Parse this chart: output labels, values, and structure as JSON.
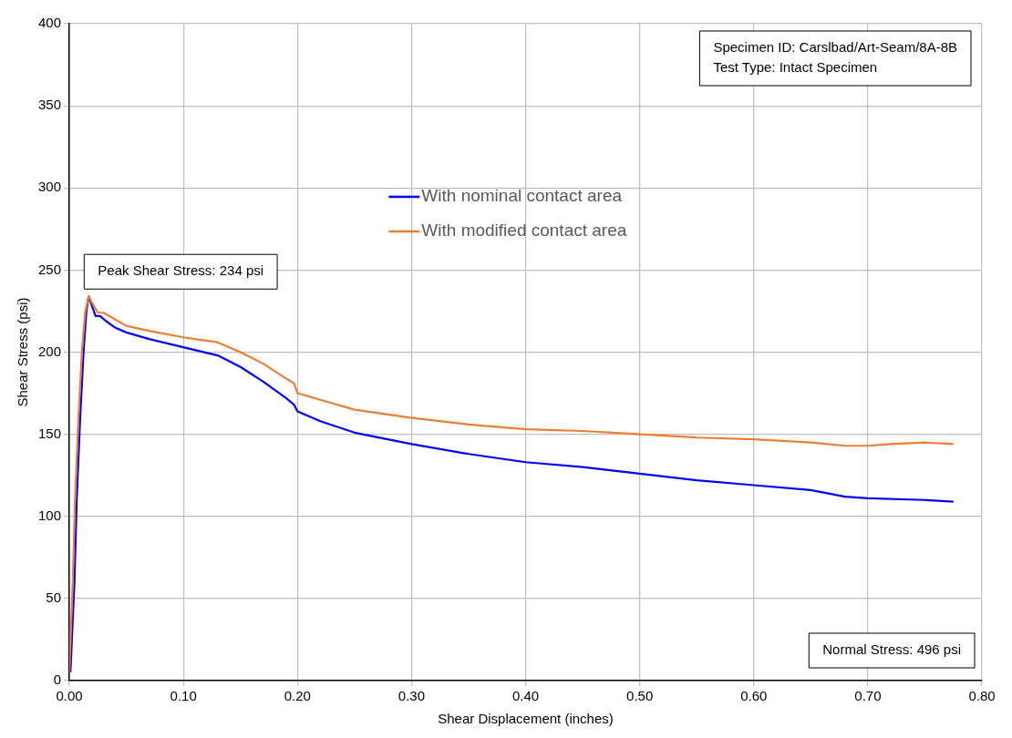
{
  "chart_data": {
    "type": "line",
    "xlabel": "Shear Displacement (inches)",
    "ylabel": "Shear Stress (psi)",
    "xlim": [
      0,
      0.8
    ],
    "xticks": [
      {
        "value": 0,
        "label": "0.00"
      },
      {
        "value": 0.1,
        "label": "0.10"
      },
      {
        "value": 0.2,
        "label": "0.20"
      },
      {
        "value": 0.3,
        "label": "0.30"
      },
      {
        "value": 0.4,
        "label": "0.40"
      },
      {
        "value": 0.5,
        "label": "0.50"
      },
      {
        "value": 0.6,
        "label": "0.60"
      },
      {
        "value": 0.7,
        "label": "0.70"
      },
      {
        "value": 0.8,
        "label": "0.80"
      }
    ],
    "ylim": [
      0,
      400
    ],
    "yticks": [
      0,
      50,
      100,
      150,
      200,
      250,
      300,
      350,
      400
    ],
    "grid": true,
    "legend": "top",
    "marker": "none",
    "line_style": "solid",
    "annotations": [
      "Specimen ID: Carslbad/Art-Seam/8A-8B\nTest Type: Intact Specimen",
      {
        "text": "Peak Shear Stress: 234 psi",
        "x": 0.017,
        "y": 234
      },
      "Normal Stress: 496 psi"
    ],
    "series": [
      {
        "name": "With nominal contact area",
        "color": "#0000ff",
        "x": [
          0.001,
          0.0045,
          0.0065,
          0.0095,
          0.0125,
          0.015,
          0.017,
          0.02,
          0.023,
          0.027,
          0.032,
          0.04,
          0.05,
          0.07,
          0.1,
          0.13,
          0.15,
          0.17,
          0.19,
          0.197,
          0.2,
          0.22,
          0.25,
          0.3,
          0.35,
          0.4,
          0.45,
          0.5,
          0.55,
          0.6,
          0.65,
          0.68,
          0.7,
          0.75,
          0.775
        ],
        "values": [
          5,
          60,
          110,
          160,
          200,
          225,
          234,
          228,
          222,
          222,
          219,
          215,
          212,
          208,
          203,
          198,
          191,
          182,
          172,
          168,
          164,
          158,
          151,
          144,
          138,
          133,
          130,
          126,
          122,
          119,
          116,
          112,
          111,
          110,
          109
        ]
      },
      {
        "name": "With modified contact area",
        "color": "#ed7d31",
        "x": [
          0,
          0.003,
          0.005,
          0.008,
          0.011,
          0.014,
          0.017,
          0.02,
          0.025,
          0.03,
          0.04,
          0.05,
          0.07,
          0.1,
          0.13,
          0.15,
          0.17,
          0.19,
          0.197,
          0.2,
          0.22,
          0.25,
          0.3,
          0.35,
          0.4,
          0.45,
          0.5,
          0.55,
          0.6,
          0.65,
          0.68,
          0.7,
          0.72,
          0.75,
          0.775
        ],
        "values": [
          5,
          60,
          110,
          160,
          200,
          225,
          234,
          230,
          224,
          224,
          220,
          216,
          213,
          209,
          206,
          200,
          193,
          184,
          181,
          175,
          171,
          165,
          160,
          156,
          153,
          152,
          150,
          148,
          147,
          145,
          143,
          143,
          144,
          145,
          144
        ]
      }
    ]
  }
}
